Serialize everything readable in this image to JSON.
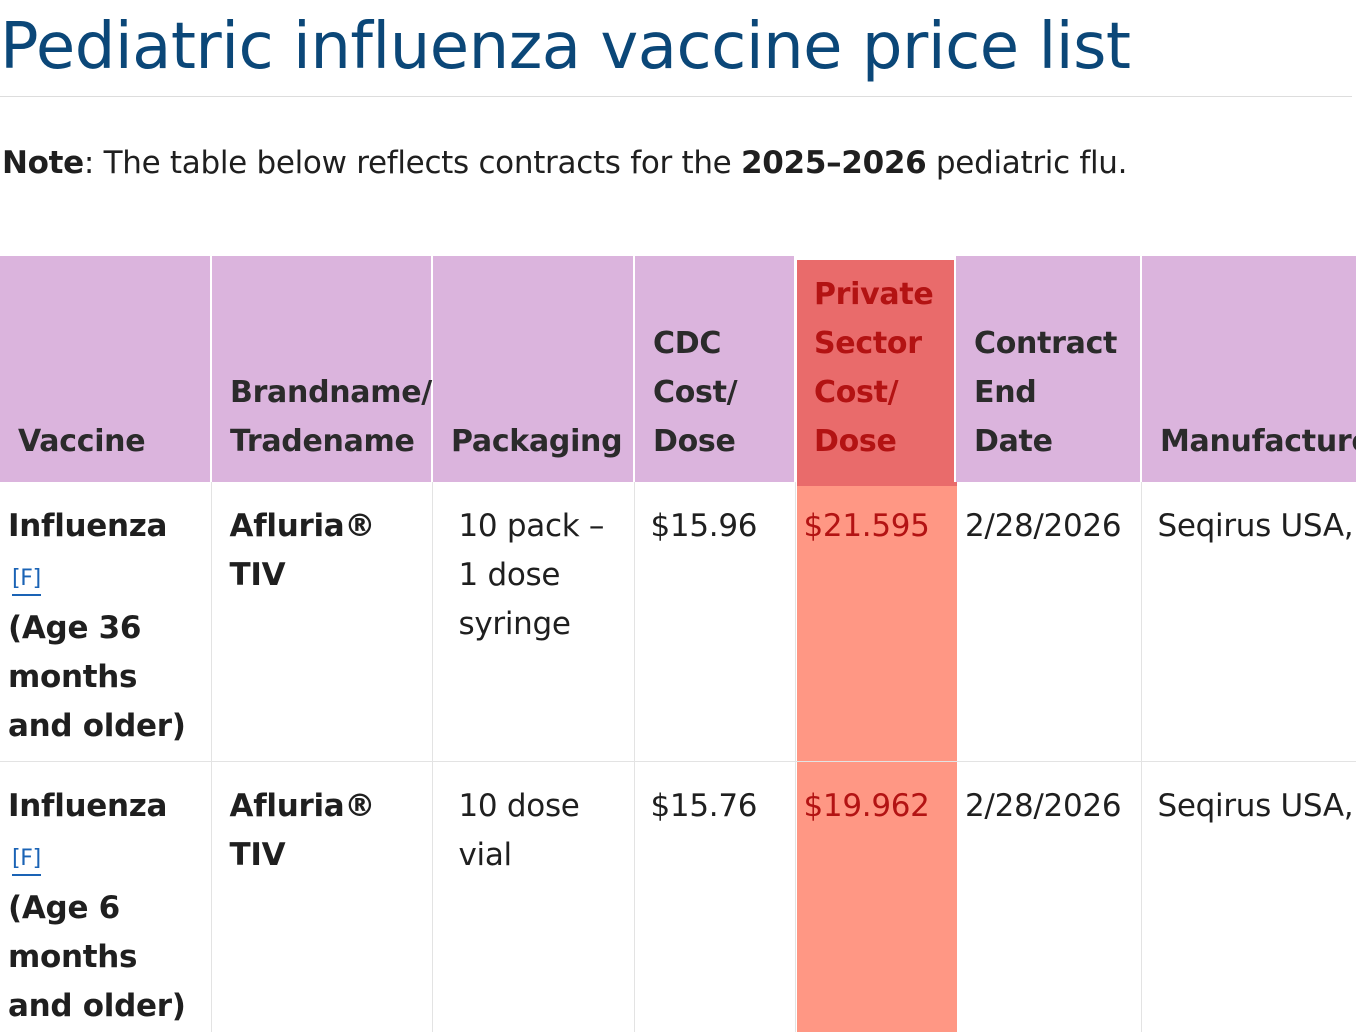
{
  "page": {
    "title": "Pediatric influenza vaccine price list",
    "note_label": "Note",
    "note_text_pre": ": The table below reflects contracts for the ",
    "note_season": "2025–2026",
    "note_text_post": " pediatric flu."
  },
  "table": {
    "headers": {
      "vaccine": "Vaccine",
      "brand": "Brandname/ Tradename",
      "packaging": "Packaging",
      "cdc_cost": "CDC Cost/ Dose",
      "private_cost": "Private Sector Cost/ Dose",
      "end_date": "Contract End Date",
      "manufacturer": "Manufacturer"
    },
    "rows": [
      {
        "vaccine": "Influenza",
        "footnote": "[F]",
        "age": "(Age 36 months and older)",
        "brand": "Afluria® TIV",
        "packaging": "10 pack – 1 dose syringe",
        "cdc_cost": "$15.96",
        "private_cost": "$21.595",
        "end_date": "2/28/2026",
        "manufacturer": "Seqirus USA,"
      },
      {
        "vaccine": "Influenza",
        "footnote": "[F]",
        "age": "(Age 6 months and older)",
        "brand": "Afluria® TIV",
        "packaging": "10 dose vial",
        "cdc_cost": "$15.76",
        "private_cost": "$19.962",
        "end_date": "2/28/2026",
        "manufacturer": "Seqirus USA,"
      }
    ]
  },
  "colors": {
    "title": "#0b4778",
    "header_bg": "#dbb4dd",
    "highlight_column": "#ff9784",
    "highlight_text": "#b31313",
    "link": "#1a63b5"
  }
}
